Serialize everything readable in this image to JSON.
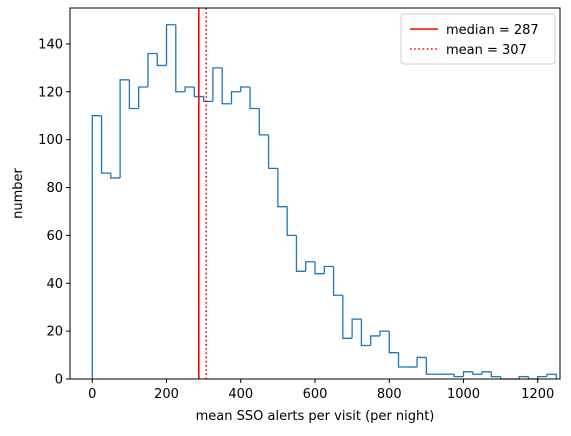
{
  "chart_data": {
    "type": "histogram",
    "xlabel": "mean SSO alerts per visit (per night)",
    "ylabel": "number",
    "xlim": [
      -60,
      1260
    ],
    "ylim": [
      0,
      155
    ],
    "xticks": [
      0,
      200,
      400,
      600,
      800,
      1000,
      1200
    ],
    "yticks": [
      0,
      20,
      40,
      60,
      80,
      100,
      120,
      140
    ],
    "bin_width": 25,
    "bin_start": 0,
    "histogram_color": "#1f77b4",
    "counts": [
      110,
      86,
      84,
      125,
      113,
      122,
      136,
      131,
      148,
      120,
      122,
      118,
      116,
      130,
      115,
      120,
      122,
      113,
      102,
      88,
      72,
      60,
      45,
      49,
      44,
      47,
      35,
      17,
      25,
      14,
      18,
      20,
      11,
      5,
      5,
      9,
      2,
      2,
      2,
      1,
      3,
      2,
      3,
      1,
      0,
      0,
      1,
      0,
      1,
      2
    ],
    "lines": [
      {
        "name": "median = 287",
        "x": 287,
        "color": "#ff0000",
        "style": "solid"
      },
      {
        "name": "mean = 307",
        "x": 307,
        "color": "#ff0000",
        "style": "dotted"
      }
    ],
    "legend_position": "top-right"
  }
}
